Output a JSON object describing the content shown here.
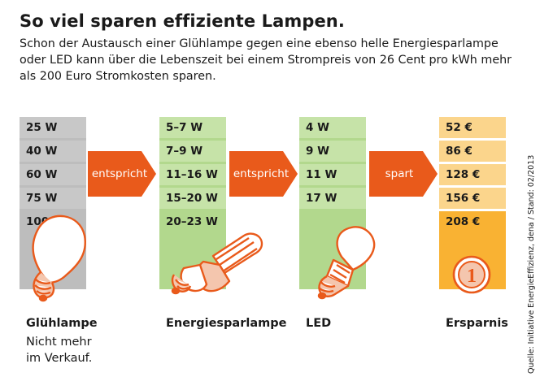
{
  "title": "So viel sparen effiziente Lampen.",
  "subtitle": "Schon der Austausch einer Glühlampe gegen eine ebenso helle Energiesparlampe oder LED kann über die Lebenszeit bei einem Strompreis von 26 Cent pro kWh mehr als 200 Euro Stromkosten sparen.",
  "columns": [
    {
      "name": "Glühlampe",
      "note_lines": [
        "Nicht mehr",
        "im Verkauf."
      ],
      "values": [
        "25 W",
        "40 W",
        "60 W",
        "75 W",
        "100 W"
      ]
    },
    {
      "name": "Energiesparlampe",
      "values": [
        "5–7 W",
        "7–9 W",
        "11–16 W",
        "15–20 W",
        "20–23 W"
      ]
    },
    {
      "name": "LED",
      "values": [
        "4 W",
        "9 W",
        "11 W",
        "17 W",
        ""
      ]
    },
    {
      "name": "Ersparnis",
      "values": [
        "52 €",
        "86 €",
        "128 €",
        "156 €",
        "208 €"
      ]
    }
  ],
  "arrows": [
    "entspricht",
    "entspricht",
    "spart"
  ],
  "coin_label": "1",
  "source": "Quelle: Initiative EnergieEffizienz, dena / Stand: 02/2013",
  "colors": {
    "gray_cell": "#c8c8c8",
    "gray_bg": "#bdbdbd",
    "green_cell": "#c6e3a8",
    "green_bg": "#b2d88d",
    "yellow_cell": "#fbd58c",
    "yellow_last": "#f9b233",
    "arrow": "#e95a1b"
  }
}
